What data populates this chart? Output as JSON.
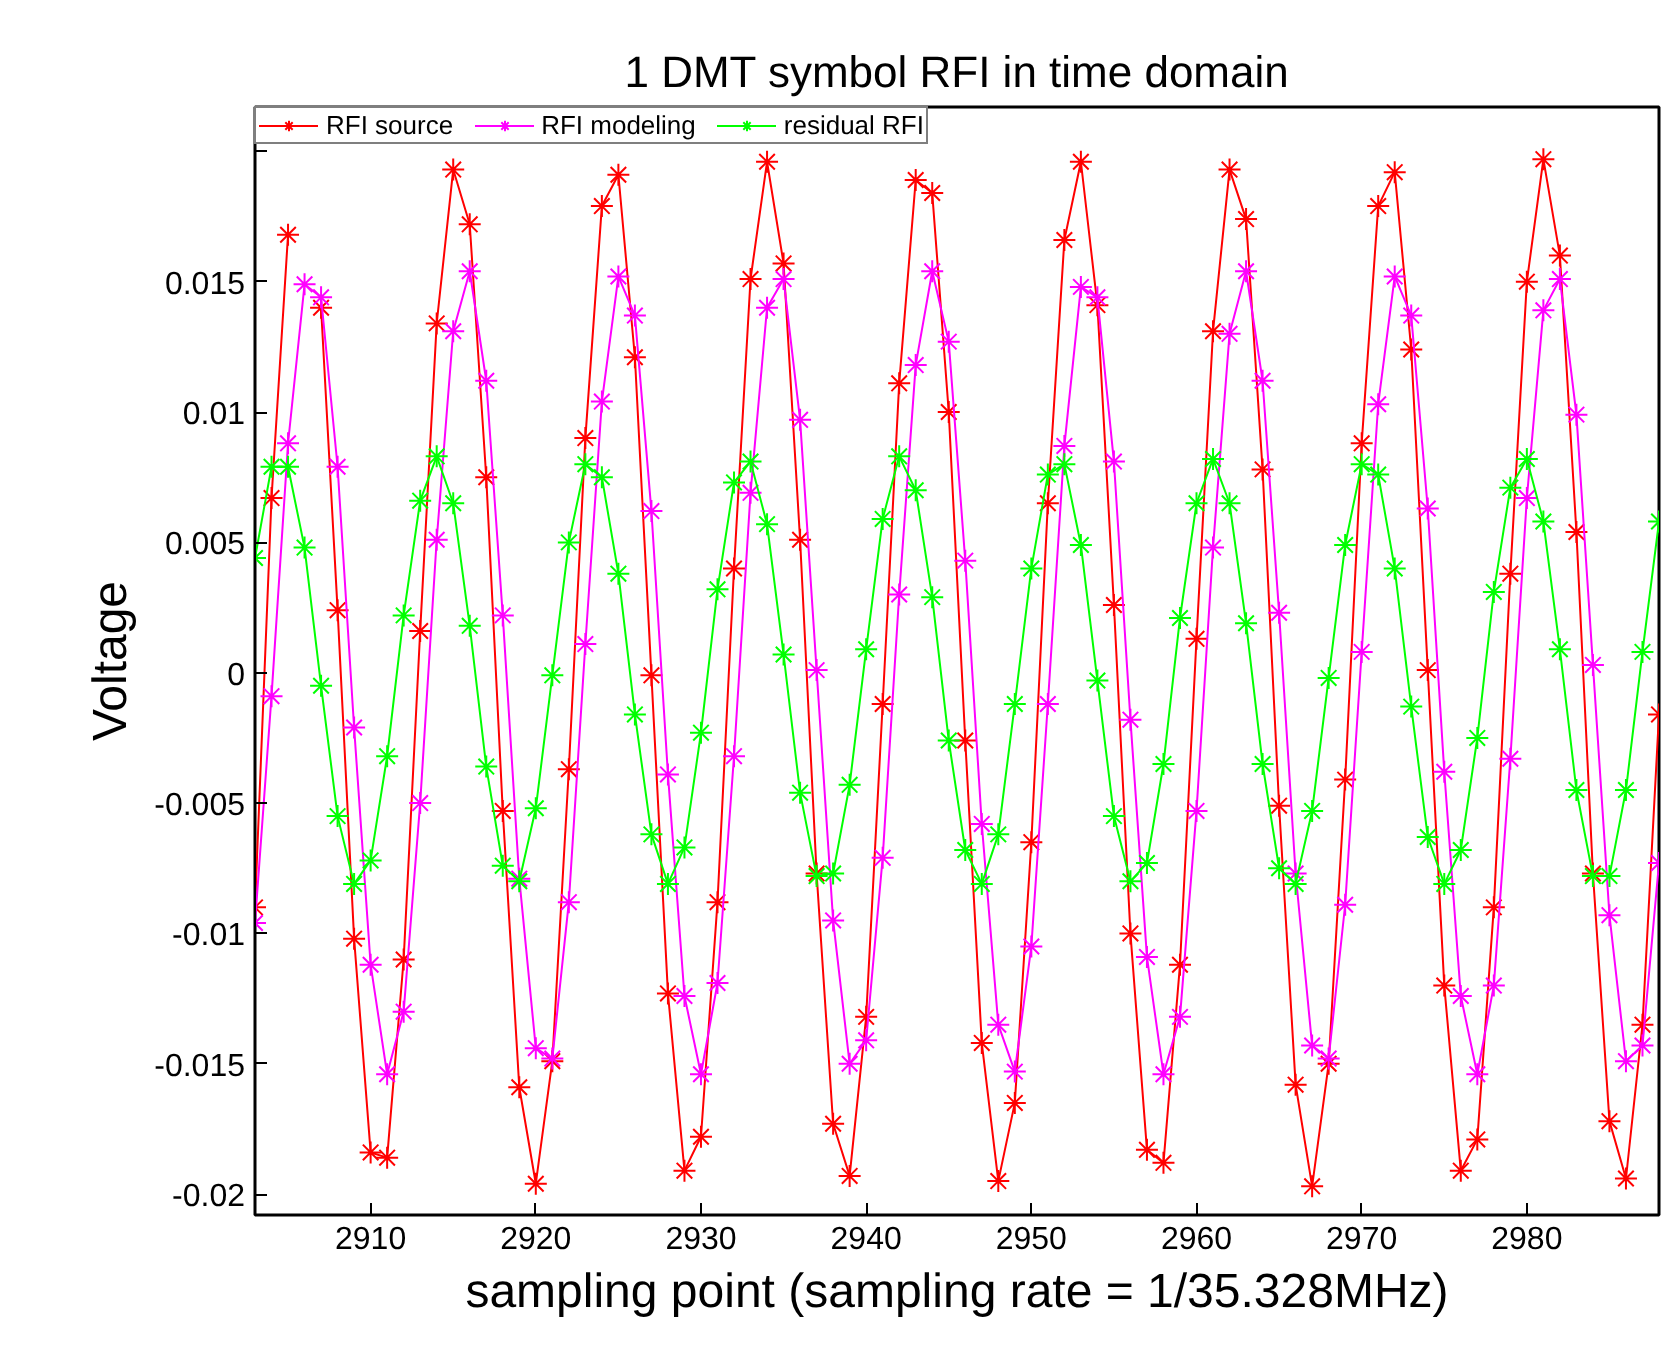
{
  "chart_data": {
    "type": "line",
    "title": "1 DMT symbol RFI in time domain",
    "xlabel": "sampling point (sampling rate = 1/35.328MHz)",
    "ylabel": "Voltage",
    "x": [
      2903,
      2904,
      2905,
      2906,
      2907,
      2908,
      2909,
      2910,
      2911,
      2912,
      2913,
      2914,
      2915,
      2916,
      2917,
      2918,
      2919,
      2920,
      2921,
      2922,
      2923,
      2924,
      2925,
      2926,
      2927,
      2928,
      2929,
      2930,
      2931,
      2932,
      2933,
      2934,
      2935,
      2936,
      2937,
      2938,
      2939,
      2940,
      2941,
      2942,
      2943,
      2944,
      2945,
      2946,
      2947,
      2948,
      2949,
      2950,
      2951,
      2952,
      2953,
      2954,
      2955,
      2956,
      2957,
      2958,
      2959,
      2960,
      2961,
      2962,
      2963,
      2964,
      2965,
      2966,
      2967,
      2968,
      2969,
      2970,
      2971,
      2972,
      2973,
      2974,
      2975,
      2976,
      2977,
      2978,
      2979,
      2980,
      2981,
      2982,
      2983,
      2984,
      2985,
      2986,
      2987,
      2988
    ],
    "series": [
      {
        "name": "RFI source",
        "color": "#ff0000",
        "values": [
          -0.009,
          0.0067,
          0.0168,
          null,
          0.014,
          0.0024,
          -0.0102,
          -0.0184,
          -0.0186,
          -0.011,
          0.0016,
          0.0134,
          0.0193,
          0.0172,
          0.0075,
          -0.0053,
          -0.0159,
          -0.0196,
          -0.0149,
          -0.0037,
          0.009,
          0.0179,
          0.0191,
          0.0121,
          -0.0001,
          -0.0123,
          -0.0191,
          -0.0178,
          -0.0088,
          0.004,
          0.0151,
          0.0196,
          0.0157,
          0.0051,
          -0.0077,
          -0.0173,
          -0.0193,
          -0.0132,
          -0.0012,
          0.0111,
          0.0189,
          0.0184,
          0.01,
          -0.0026,
          -0.0142,
          -0.0195,
          -0.0165,
          -0.0065,
          0.0065,
          0.0166,
          0.0196,
          0.0141,
          0.0026,
          -0.01,
          -0.0183,
          -0.0188,
          -0.0112,
          0.0013,
          0.0131,
          0.0193,
          0.0174,
          0.0078,
          -0.0051,
          -0.0158,
          -0.0197,
          -0.015,
          -0.0041,
          0.0088,
          0.0179,
          0.0192,
          0.0124,
          0.0001,
          -0.012,
          -0.0191,
          -0.0179,
          -0.009,
          0.0038,
          0.015,
          0.0197,
          0.016,
          0.0054,
          -0.0077,
          -0.0172,
          -0.0194,
          -0.0135,
          -0.0016
        ]
      },
      {
        "name": "RFI modeling",
        "color": "#ff00ff",
        "values": [
          -0.0096,
          -0.0009,
          0.0088,
          0.0149,
          0.0144,
          0.0079,
          -0.0021,
          -0.0112,
          -0.0154,
          -0.013,
          -0.005,
          0.0051,
          0.0131,
          0.0154,
          0.0112,
          0.0022,
          -0.0079,
          -0.0144,
          -0.0148,
          -0.0088,
          0.0011,
          0.0104,
          0.0152,
          0.0137,
          0.0062,
          -0.0039,
          -0.0124,
          -0.0154,
          -0.0119,
          -0.0032,
          0.0069,
          0.014,
          0.0151,
          0.0097,
          0.0001,
          -0.0095,
          -0.015,
          -0.0141,
          -0.0071,
          0.003,
          0.0118,
          0.0154,
          0.0127,
          0.0043,
          -0.0058,
          -0.0135,
          -0.0153,
          -0.0105,
          -0.0012,
          0.0087,
          0.0148,
          0.0144,
          0.0081,
          -0.0018,
          -0.0109,
          -0.0154,
          -0.0132,
          -0.0053,
          0.0048,
          0.013,
          0.0154,
          0.0112,
          0.0023,
          -0.0077,
          -0.0143,
          -0.0148,
          -0.0089,
          0.0008,
          0.0103,
          0.0152,
          0.0137,
          0.0063,
          -0.0038,
          -0.0124,
          -0.0154,
          -0.012,
          -0.0033,
          0.0067,
          0.0139,
          0.0151,
          0.0099,
          0.0003,
          -0.0093,
          -0.0149,
          -0.0143,
          -0.0073
        ]
      },
      {
        "name": "residual RFI",
        "color": "#00ff00",
        "values": [
          0.0044,
          0.0079,
          0.0079,
          0.0048,
          -0.0005,
          -0.0055,
          -0.0081,
          -0.0072,
          -0.0032,
          0.0022,
          0.0066,
          0.0083,
          0.0065,
          0.0018,
          -0.0036,
          -0.0074,
          -0.008,
          -0.0052,
          -0.0001,
          0.005,
          0.008,
          0.0075,
          0.0038,
          -0.0016,
          -0.0062,
          -0.0081,
          -0.0067,
          -0.0023,
          0.0032,
          0.0073,
          0.0081,
          0.0057,
          0.0007,
          -0.0046,
          -0.0078,
          -0.0077,
          -0.0043,
          0.0009,
          0.0059,
          0.0083,
          0.007,
          0.0029,
          -0.0026,
          -0.0068,
          -0.0081,
          -0.0062,
          -0.0012,
          0.004,
          0.0076,
          0.008,
          0.0049,
          -0.0003,
          -0.0055,
          -0.008,
          -0.0073,
          -0.0035,
          0.0021,
          0.0065,
          0.0082,
          0.0065,
          0.0019,
          -0.0035,
          -0.0075,
          -0.0081,
          -0.0053,
          -0.0002,
          0.0049,
          0.008,
          0.0076,
          0.004,
          -0.0013,
          -0.0063,
          -0.0081,
          -0.0068,
          -0.0025,
          0.0031,
          0.0071,
          0.0082,
          0.0058,
          0.0009,
          -0.0045,
          -0.0078,
          -0.0078,
          -0.0045,
          0.0008,
          0.0058
        ]
      }
    ],
    "xlim": [
      2903,
      2988
    ],
    "ylim": [
      -0.0208,
      0.0217
    ],
    "xticks": [
      2910,
      2920,
      2930,
      2940,
      2950,
      2960,
      2970,
      2980
    ],
    "yticks": [
      -0.02,
      -0.015,
      -0.01,
      -0.005,
      0,
      0.005,
      0.01,
      0.015,
      {
        "value": 0.02,
        "label": null
      }
    ],
    "grid": false,
    "legend": "top left",
    "marker": "cross",
    "line_style": "solid"
  }
}
